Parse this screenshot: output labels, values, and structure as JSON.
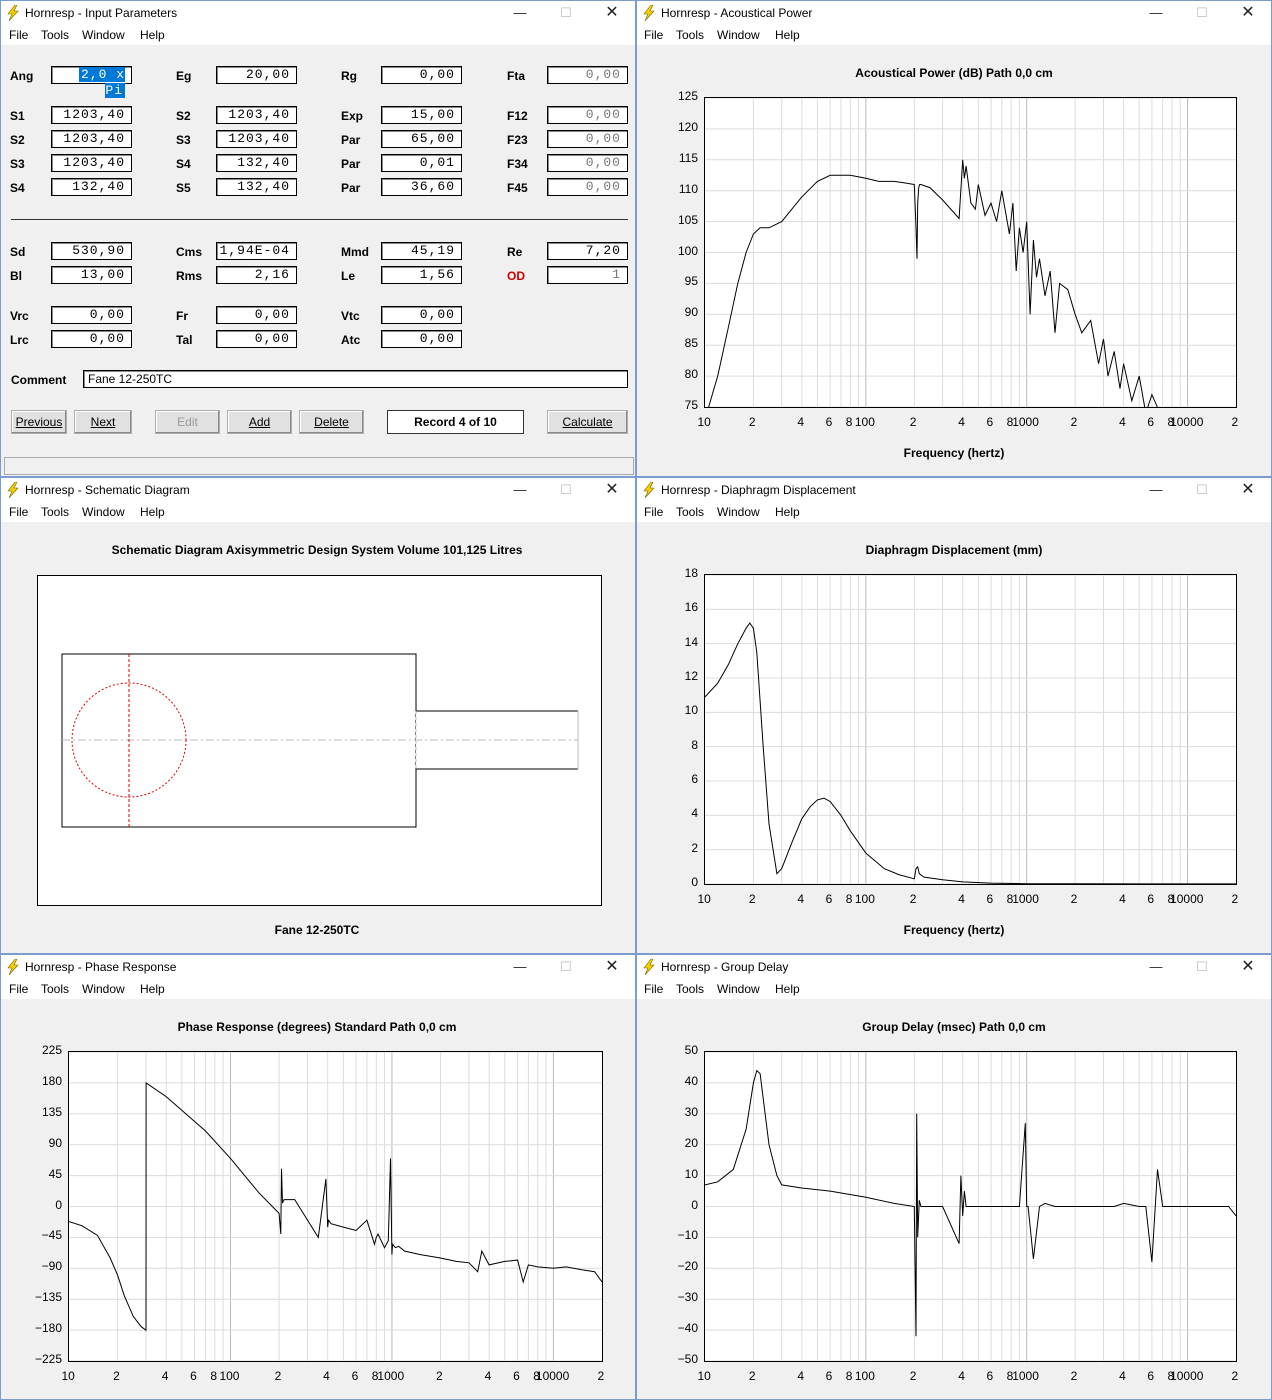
{
  "windows": {
    "input": {
      "title": "Hornresp - Input Parameters"
    },
    "power": {
      "title": "Hornresp - Acoustical Power",
      "chart_title": "Acoustical Power (dB)   Path 0,0 cm",
      "xlabel": "Frequency (hertz)"
    },
    "schematic": {
      "title": "Hornresp - Schematic Diagram",
      "heading": "Schematic Diagram   Axisymmetric Design   System Volume 101,125 Litres",
      "caption": "Fane 12-250TC"
    },
    "displacement": {
      "title": "Hornresp - Diaphragm Displacement",
      "chart_title": "Diaphragm Displacement (mm)",
      "xlabel": "Frequency (hertz)"
    },
    "phase": {
      "title": "Hornresp - Phase Response",
      "chart_title": "Phase Response (degrees)   Standard   Path 0,0 cm"
    },
    "delay": {
      "title": "Hornresp - Group Delay",
      "chart_title": "Group Delay (msec)   Path 0,0 cm"
    }
  },
  "menu": {
    "file": "File",
    "tools": "Tools",
    "window": "Window",
    "help": "Help"
  },
  "controls": {
    "minimize": "—",
    "maximize": "☐",
    "close": "✕"
  },
  "params": {
    "row0": [
      {
        "label": "Ang",
        "value": "2,0 x Pi",
        "selected": true
      },
      {
        "label": "Eg",
        "value": "20,00"
      },
      {
        "label": "Rg",
        "value": "0,00"
      },
      {
        "label": "Fta",
        "value": "0,00",
        "disabled": true
      }
    ],
    "row1": [
      {
        "label": "S1",
        "value": "1203,40"
      },
      {
        "label": "S2",
        "value": "1203,40"
      },
      {
        "label": "Exp",
        "value": "15,00"
      },
      {
        "label": "F12",
        "value": "0,00",
        "disabled": true
      }
    ],
    "row2": [
      {
        "label": "S2",
        "value": "1203,40"
      },
      {
        "label": "S3",
        "value": "1203,40"
      },
      {
        "label": "Par",
        "value": "65,00"
      },
      {
        "label": "F23",
        "value": "0,00",
        "disabled": true
      }
    ],
    "row3": [
      {
        "label": "S3",
        "value": "1203,40"
      },
      {
        "label": "S4",
        "value": "132,40"
      },
      {
        "label": "Par",
        "value": "0,01"
      },
      {
        "label": "F34",
        "value": "0,00",
        "disabled": true
      }
    ],
    "row4": [
      {
        "label": "S4",
        "value": "132,40"
      },
      {
        "label": "S5",
        "value": "132,40"
      },
      {
        "label": "Par",
        "value": "36,60"
      },
      {
        "label": "F45",
        "value": "0,00",
        "disabled": true
      }
    ],
    "row5": [
      {
        "label": "Sd",
        "value": "530,90"
      },
      {
        "label": "Cms",
        "value": "1,94E-04"
      },
      {
        "label": "Mmd",
        "value": "45,19"
      },
      {
        "label": "Re",
        "value": "7,20"
      }
    ],
    "row6": [
      {
        "label": "Bl",
        "value": "13,00"
      },
      {
        "label": "Rms",
        "value": "2,16"
      },
      {
        "label": "Le",
        "value": "1,56"
      },
      {
        "label": "OD",
        "value": "1",
        "disabled": true,
        "red": true
      }
    ],
    "row7": [
      {
        "label": "Vrc",
        "value": "0,00"
      },
      {
        "label": "Fr",
        "value": "0,00"
      },
      {
        "label": "Vtc",
        "value": "0,00"
      }
    ],
    "row8": [
      {
        "label": "Lrc",
        "value": "0,00"
      },
      {
        "label": "Tal",
        "value": "0,00"
      },
      {
        "label": "Atc",
        "value": "0,00"
      }
    ],
    "comment_label": "Comment",
    "comment": "Fane 12-250TC"
  },
  "buttons": {
    "previous": "Previous",
    "next": "Next",
    "edit": "Edit",
    "add": "Add",
    "delete": "Delete",
    "record": "Record 4 of 10",
    "calculate": "Calculate"
  },
  "freq_ticks": [
    "10",
    "2",
    "4",
    "6",
    "8",
    "100",
    "2",
    "4",
    "6",
    "8",
    "1000",
    "2",
    "4",
    "6",
    "8",
    "10000",
    "2"
  ],
  "chart_data": [
    {
      "id": "power",
      "type": "line",
      "title": "Acoustical Power (dB)   Path 0,0 cm",
      "xlabel": "Frequency (hertz)",
      "xscale": "log",
      "xlim": [
        10,
        20000
      ],
      "ylim": [
        75,
        125
      ],
      "yticks": [
        75,
        80,
        85,
        90,
        95,
        100,
        105,
        110,
        115,
        120,
        125
      ],
      "x": [
        10,
        12,
        14,
        16,
        18,
        20,
        22,
        25,
        30,
        40,
        50,
        60,
        80,
        100,
        120,
        150,
        180,
        200,
        205,
        208,
        210,
        213,
        216,
        220,
        250,
        300,
        380,
        400,
        410,
        420,
        450,
        480,
        500,
        550,
        600,
        650,
        700,
        780,
        820,
        860,
        900,
        950,
        1000,
        1050,
        1100,
        1150,
        1200,
        1300,
        1400,
        1500,
        1600,
        1800,
        2000,
        2200,
        2500,
        2800,
        3000,
        3200,
        3500,
        3800,
        4000,
        4500,
        5000,
        5500,
        6000,
        7000,
        8000
      ],
      "y": [
        73,
        80,
        88,
        95,
        100,
        103,
        104,
        104,
        105,
        109,
        111.5,
        112.5,
        112.5,
        112,
        111.5,
        111.5,
        111.2,
        111,
        104,
        99,
        108,
        110.5,
        111,
        111,
        110.5,
        108.5,
        105.5,
        115,
        112,
        114,
        108,
        107,
        111,
        106,
        108,
        105,
        110,
        103,
        108,
        97,
        104,
        100,
        105,
        90,
        102,
        96,
        99,
        93,
        97,
        87,
        95,
        94,
        90,
        87,
        89,
        82,
        86,
        80,
        84,
        78,
        82,
        76,
        80,
        74,
        77,
        73,
        75
      ]
    },
    {
      "id": "displacement",
      "type": "line",
      "title": "Diaphragm Displacement (mm)",
      "xlabel": "Frequency (hertz)",
      "xscale": "log",
      "xlim": [
        10,
        20000
      ],
      "ylim": [
        0,
        18
      ],
      "yticks": [
        0,
        2,
        4,
        6,
        8,
        10,
        12,
        14,
        16,
        18
      ],
      "x": [
        10,
        12,
        14,
        16,
        18,
        19,
        20,
        21,
        23,
        25,
        28,
        30,
        35,
        40,
        45,
        50,
        55,
        60,
        70,
        80,
        100,
        130,
        160,
        200,
        205,
        210,
        215,
        230,
        300,
        400,
        600,
        1000,
        2000,
        5000,
        20000
      ],
      "y": [
        10.9,
        11.7,
        12.8,
        14.0,
        14.9,
        15.2,
        14.9,
        13.5,
        8,
        3.5,
        0.6,
        0.9,
        2.5,
        3.8,
        4.5,
        4.9,
        5.0,
        4.8,
        4.0,
        3.1,
        1.8,
        0.9,
        0.55,
        0.3,
        0.9,
        1.0,
        0.6,
        0.4,
        0.25,
        0.12,
        0.05,
        0.02,
        0.01,
        0.005,
        0.003
      ]
    },
    {
      "id": "phase",
      "type": "line",
      "title": "Phase Response (degrees)   Standard   Path 0,0 cm",
      "xscale": "log",
      "xlim": [
        10,
        20000
      ],
      "ylim": [
        -225,
        225
      ],
      "yticks": [
        -225,
        -180,
        -135,
        -90,
        -45,
        0,
        45,
        90,
        135,
        180,
        225
      ],
      "x": [
        10,
        12,
        15,
        18,
        20,
        22,
        25,
        28,
        30,
        30.01,
        40,
        50,
        70,
        100,
        150,
        200,
        205,
        207,
        210,
        215,
        250,
        350,
        390,
        400,
        405,
        420,
        500,
        600,
        700,
        780,
        800,
        820,
        900,
        950,
        980,
        1000,
        1010,
        1050,
        1100,
        1200,
        1500,
        2000,
        2500,
        3000,
        3400,
        3600,
        4000,
        5000,
        6000,
        6500,
        7000,
        8000,
        10000,
        12000,
        15000,
        18000,
        20000
      ],
      "y": [
        -22,
        -28,
        -42,
        -75,
        -100,
        -130,
        -160,
        -175,
        -180,
        180,
        160,
        140,
        110,
        70,
        20,
        -10,
        -40,
        55,
        5,
        10,
        10,
        -45,
        40,
        -30,
        -20,
        -25,
        -30,
        -35,
        -20,
        -55,
        -45,
        -40,
        -60,
        -50,
        70,
        -70,
        -55,
        -60,
        -58,
        -65,
        -70,
        -75,
        -80,
        -82,
        -95,
        -65,
        -85,
        -80,
        -78,
        -110,
        -85,
        -88,
        -90,
        -88,
        -92,
        -95,
        -110
      ]
    },
    {
      "id": "delay",
      "type": "line",
      "title": "Group Delay (msec)   Path 0,0 cm",
      "xscale": "log",
      "xlim": [
        10,
        20000
      ],
      "ylim": [
        -50,
        50
      ],
      "yticks": [
        -50,
        -40,
        -30,
        -20,
        -10,
        0,
        10,
        20,
        30,
        40,
        50
      ],
      "x": [
        10,
        12,
        15,
        18,
        20,
        21,
        22,
        23,
        25,
        28,
        30,
        40,
        60,
        100,
        150,
        200,
        205,
        207,
        210,
        215,
        220,
        230,
        300,
        380,
        390,
        400,
        410,
        420,
        500,
        600,
        700,
        800,
        900,
        980,
        1000,
        1020,
        1100,
        1200,
        1300,
        1500,
        2000,
        2500,
        3000,
        3500,
        4000,
        5000,
        5500,
        6000,
        6500,
        7000,
        8000,
        9000,
        10000,
        12000,
        15000,
        18000,
        20000
      ],
      "y": [
        7,
        8,
        12,
        25,
        40,
        44,
        43,
        35,
        20,
        10,
        7,
        6,
        5,
        3,
        1,
        0,
        -42,
        30,
        -10,
        2,
        0,
        0,
        0,
        -12,
        10,
        -3,
        5,
        0,
        0,
        0,
        0,
        0,
        0,
        27,
        0,
        0,
        -17,
        0,
        1,
        0,
        0,
        0,
        0,
        0,
        1,
        0,
        0,
        -18,
        12,
        0,
        0,
        0,
        0,
        0,
        0,
        0,
        -3
      ]
    }
  ]
}
